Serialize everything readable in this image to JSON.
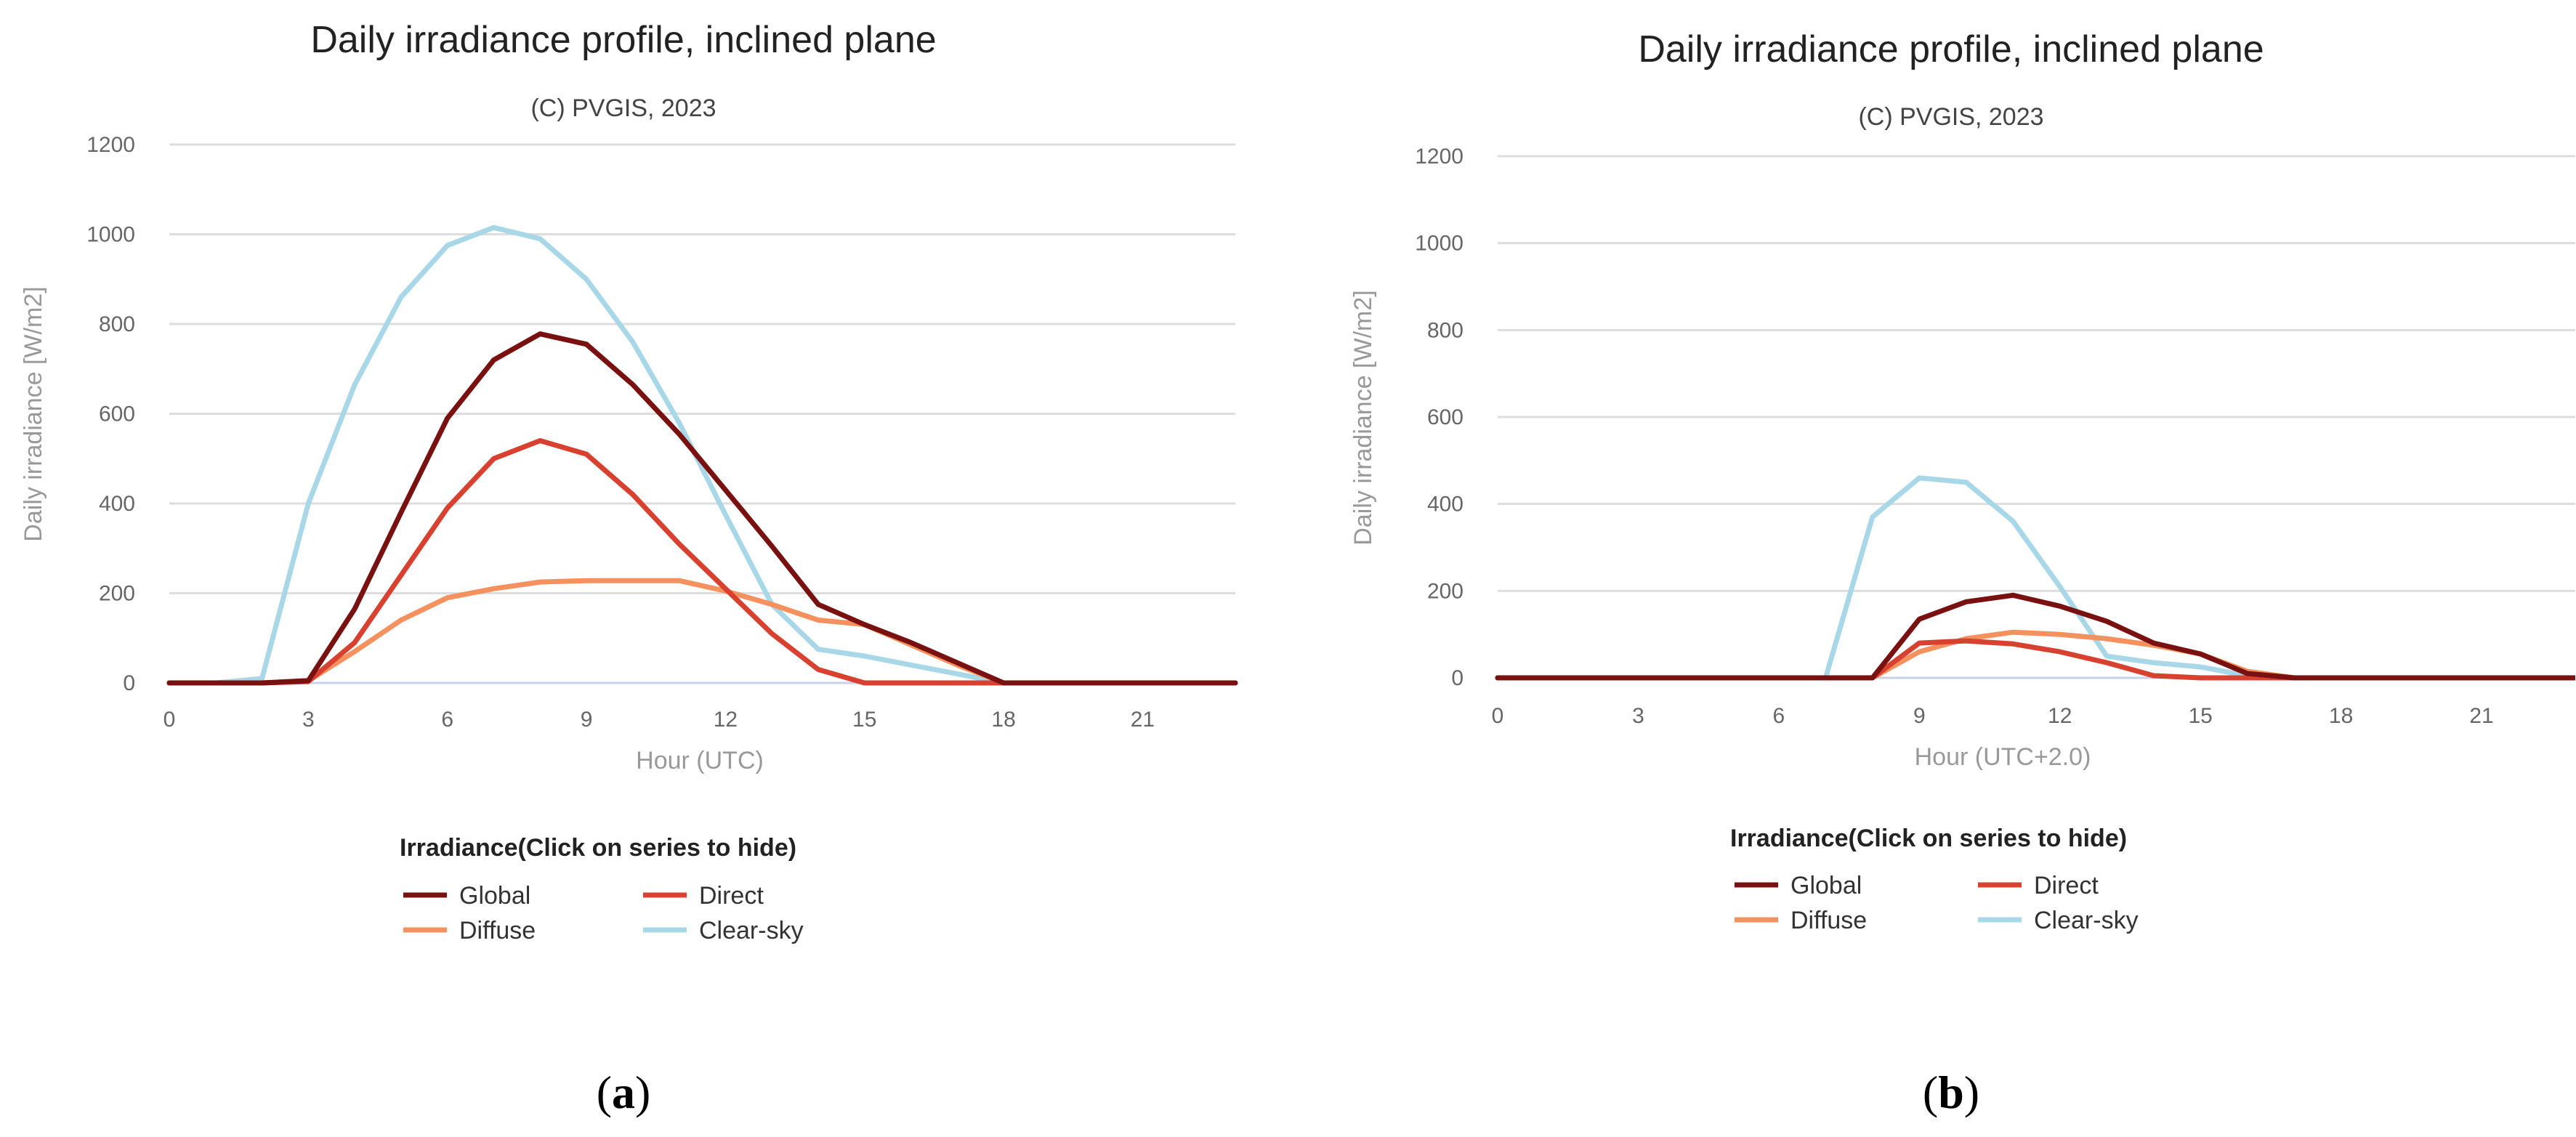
{
  "chart_data": [
    {
      "type": "line",
      "panel_label": "a",
      "title": "Daily irradiance profile, inclined plane",
      "subtitle": "(C) PVGIS, 2023",
      "xlabel": "Hour (UTC)",
      "ylabel": "Daily irradiance [W/m2]",
      "xlim": [
        0,
        23
      ],
      "ylim": [
        0,
        1200
      ],
      "x_ticks": [
        "0",
        "3",
        "6",
        "9",
        "12",
        "15",
        "18",
        "21"
      ],
      "y_ticks": [
        "0",
        "200",
        "400",
        "600",
        "800",
        "1000",
        "1200"
      ],
      "legend_title": "Irradiance(Click on series to hide)",
      "x": [
        0,
        1,
        2,
        3,
        4,
        5,
        6,
        7,
        8,
        9,
        10,
        11,
        12,
        13,
        14,
        15,
        16,
        17,
        18,
        19,
        20,
        21,
        22,
        23
      ],
      "series": [
        {
          "name": "Global",
          "color": "#7a1111",
          "values": [
            0,
            0,
            0,
            5,
            165,
            380,
            590,
            720,
            778,
            755,
            665,
            555,
            430,
            305,
            175,
            130,
            90,
            45,
            0,
            0,
            0,
            0,
            0,
            0
          ]
        },
        {
          "name": "Direct",
          "color": "#d8412f",
          "values": [
            0,
            0,
            0,
            3,
            90,
            240,
            390,
            500,
            540,
            510,
            420,
            310,
            210,
            110,
            30,
            0,
            0,
            0,
            0,
            0,
            0,
            0,
            0,
            0
          ]
        },
        {
          "name": "Diffuse",
          "color": "#f4915e",
          "values": [
            0,
            0,
            0,
            5,
            70,
            140,
            190,
            210,
            225,
            228,
            228,
            228,
            205,
            175,
            140,
            130,
            85,
            40,
            0,
            0,
            0,
            0,
            0,
            0
          ]
        },
        {
          "name": "Clear-sky",
          "color": "#a8d8e8",
          "values": [
            0,
            0,
            10,
            400,
            665,
            860,
            975,
            1015,
            990,
            900,
            760,
            580,
            375,
            175,
            75,
            60,
            40,
            20,
            0,
            0,
            0,
            0,
            0,
            0
          ]
        }
      ]
    },
    {
      "type": "line",
      "panel_label": "b",
      "title": "Daily irradiance profile, inclined plane",
      "subtitle": "(C) PVGIS, 2023",
      "xlabel": "Hour (UTC+2.0)",
      "ylabel": "Daily irradiance [W/m2]",
      "xlim": [
        0,
        23
      ],
      "ylim": [
        0,
        1200
      ],
      "x_ticks": [
        "0",
        "3",
        "6",
        "9",
        "12",
        "15",
        "18",
        "21"
      ],
      "y_ticks": [
        "0",
        "200",
        "400",
        "600",
        "800",
        "1000",
        "1200"
      ],
      "legend_title": "Irradiance(Click on series to hide)",
      "x": [
        0,
        1,
        2,
        3,
        4,
        5,
        6,
        7,
        8,
        9,
        10,
        11,
        12,
        13,
        14,
        15,
        16,
        17,
        18,
        19,
        20,
        21,
        22,
        23
      ],
      "series": [
        {
          "name": "Global",
          "color": "#7a1111",
          "values": [
            0,
            0,
            0,
            0,
            0,
            0,
            0,
            0,
            0,
            135,
            175,
            190,
            165,
            130,
            80,
            55,
            10,
            0,
            0,
            0,
            0,
            0,
            0,
            0
          ]
        },
        {
          "name": "Direct",
          "color": "#d8412f",
          "values": [
            0,
            0,
            0,
            0,
            0,
            0,
            0,
            0,
            0,
            80,
            85,
            78,
            60,
            35,
            5,
            0,
            0,
            0,
            0,
            0,
            0,
            0,
            0,
            0
          ]
        },
        {
          "name": "Diffuse",
          "color": "#f4915e",
          "values": [
            0,
            0,
            0,
            0,
            0,
            0,
            0,
            0,
            0,
            60,
            90,
            105,
            100,
            90,
            75,
            55,
            15,
            0,
            0,
            0,
            0,
            0,
            0,
            0
          ]
        },
        {
          "name": "Clear-sky",
          "color": "#a8d8e8",
          "values": [
            0,
            0,
            0,
            0,
            0,
            0,
            0,
            0,
            370,
            460,
            450,
            360,
            210,
            50,
            35,
            25,
            5,
            0,
            0,
            0,
            0,
            0,
            0,
            0
          ]
        }
      ]
    }
  ]
}
